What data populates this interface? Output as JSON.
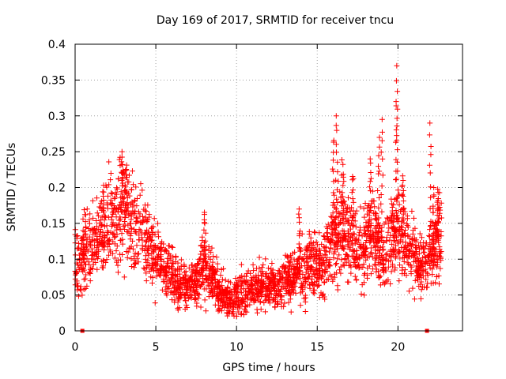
{
  "chart_data": {
    "type": "scatter",
    "title": "Day 169 of 2017, SRMTID for receiver tncu",
    "xlabel": "GPS time / hours",
    "ylabel": "SRMTID / TECUs",
    "xlim": [
      0,
      24
    ],
    "ylim": [
      0,
      0.4
    ],
    "x_ticks": [
      0,
      5,
      10,
      15,
      20
    ],
    "x_tick_labels": [
      "0",
      "5",
      "10",
      "15",
      "20"
    ],
    "y_ticks": [
      0,
      0.05,
      0.1,
      0.15,
      0.2,
      0.25,
      0.3,
      0.35,
      0.4
    ],
    "y_tick_labels": [
      "0",
      "0.05",
      "0.1",
      "0.15",
      "0.2",
      "0.25",
      "0.3",
      "0.35",
      "0.4"
    ],
    "grid": true,
    "marker": "plus",
    "color": "#ff0000",
    "data_extent_hours": [
      0,
      22.7
    ],
    "trend": {
      "x": [
        0,
        0.5,
        1.0,
        1.5,
        2.0,
        2.5,
        3.0,
        3.5,
        4.0,
        4.5,
        5.0,
        5.5,
        6.0,
        6.5,
        7.0,
        7.5,
        8.0,
        8.5,
        9.0,
        9.5,
        10.0,
        10.5,
        11.0,
        11.5,
        12.0,
        12.5,
        13.0,
        13.5,
        14.0,
        14.5,
        15.0,
        15.5,
        16.0,
        16.5,
        17.0,
        17.5,
        18.0,
        18.5,
        19.0,
        19.5,
        20.0,
        20.5,
        21.0,
        21.5,
        22.0,
        22.5,
        22.7
      ],
      "y": [
        0.095,
        0.11,
        0.12,
        0.13,
        0.15,
        0.16,
        0.17,
        0.16,
        0.14,
        0.12,
        0.105,
        0.09,
        0.075,
        0.065,
        0.06,
        0.07,
        0.09,
        0.08,
        0.05,
        0.045,
        0.05,
        0.055,
        0.06,
        0.06,
        0.06,
        0.065,
        0.07,
        0.075,
        0.085,
        0.09,
        0.095,
        0.1,
        0.13,
        0.14,
        0.13,
        0.11,
        0.12,
        0.14,
        0.1,
        0.12,
        0.14,
        0.12,
        0.1,
        0.09,
        0.1,
        0.13,
        0.12
      ]
    },
    "spikes": [
      {
        "x": 2.9,
        "y": 0.25
      },
      {
        "x": 3.2,
        "y": 0.23
      },
      {
        "x": 8.0,
        "y": 0.17
      },
      {
        "x": 13.9,
        "y": 0.17
      },
      {
        "x": 16.2,
        "y": 0.3
      },
      {
        "x": 16.0,
        "y": 0.27
      },
      {
        "x": 16.6,
        "y": 0.24
      },
      {
        "x": 17.2,
        "y": 0.22
      },
      {
        "x": 18.3,
        "y": 0.24
      },
      {
        "x": 18.8,
        "y": 0.27
      },
      {
        "x": 19.0,
        "y": 0.295
      },
      {
        "x": 19.9,
        "y": 0.37
      },
      {
        "x": 19.95,
        "y": 0.32
      },
      {
        "x": 20.3,
        "y": 0.22
      },
      {
        "x": 22.0,
        "y": 0.29
      },
      {
        "x": 22.2,
        "y": 0.2
      },
      {
        "x": 22.5,
        "y": 0.2
      }
    ],
    "zero_points_x": [
      0.45,
      21.8
    ]
  }
}
